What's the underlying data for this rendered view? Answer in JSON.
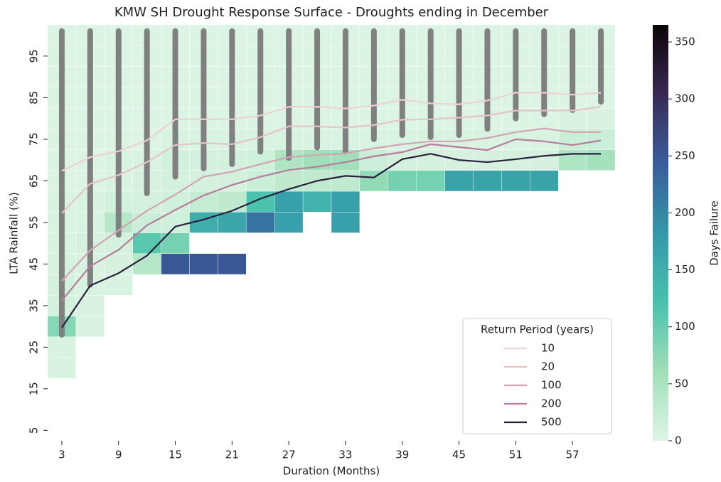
{
  "chart_data": {
    "type": "heatmap",
    "title": "KMW SH Drought Response Surface - Droughts ending in December",
    "xlabel": "Duration (Months)",
    "ylabel": "LTA Rainfall (%)",
    "xlim": [
      1.5,
      61.5
    ],
    "ylim": [
      2.5,
      102.5
    ],
    "xticks": [
      3,
      9,
      15,
      21,
      27,
      33,
      39,
      45,
      51,
      57
    ],
    "yticks": [
      5,
      15,
      25,
      35,
      45,
      55,
      65,
      75,
      85,
      95
    ],
    "x": [
      3,
      6,
      9,
      12,
      15,
      18,
      21,
      24,
      27,
      30,
      33,
      36,
      39,
      42,
      45,
      48,
      51,
      54,
      57,
      60
    ],
    "heatmap": {
      "y": [
        5,
        10,
        15,
        20,
        25,
        30,
        35,
        40,
        45,
        50,
        55,
        60,
        65,
        70,
        75,
        80,
        85,
        90,
        95,
        100
      ],
      "z": [
        [
          null,
          null,
          null,
          5,
          5,
          80,
          10,
          10,
          8,
          5,
          5,
          5,
          3,
          3,
          2,
          2,
          2,
          2,
          2,
          2
        ],
        [
          null,
          null,
          null,
          null,
          null,
          5,
          5,
          5,
          5,
          8,
          5,
          5,
          3,
          3,
          2,
          2,
          2,
          2,
          2,
          2
        ],
        [
          null,
          null,
          null,
          null,
          null,
          null,
          null,
          5,
          8,
          10,
          40,
          10,
          5,
          5,
          3,
          2,
          2,
          2,
          2,
          2
        ],
        [
          null,
          null,
          null,
          null,
          null,
          null,
          null,
          null,
          40,
          110,
          20,
          10,
          8,
          5,
          3,
          2,
          2,
          2,
          2,
          2
        ],
        [
          null,
          null,
          null,
          null,
          null,
          null,
          null,
          null,
          250,
          90,
          15,
          15,
          10,
          12,
          5,
          2,
          2,
          2,
          2,
          2
        ],
        [
          null,
          null,
          null,
          null,
          null,
          null,
          null,
          null,
          250,
          null,
          150,
          25,
          10,
          10,
          5,
          2,
          2,
          2,
          2,
          2
        ],
        [
          null,
          null,
          null,
          null,
          null,
          null,
          null,
          null,
          250,
          null,
          160,
          30,
          10,
          10,
          5,
          2,
          2,
          2,
          2,
          2
        ],
        [
          null,
          null,
          null,
          null,
          null,
          null,
          null,
          null,
          null,
          null,
          220,
          120,
          20,
          15,
          5,
          2,
          2,
          2,
          2,
          2
        ],
        [
          null,
          null,
          null,
          null,
          null,
          null,
          null,
          null,
          null,
          null,
          170,
          170,
          30,
          45,
          5,
          2,
          2,
          2,
          2,
          2
        ],
        [
          null,
          null,
          null,
          null,
          null,
          null,
          null,
          null,
          null,
          null,
          null,
          140,
          30,
          60,
          5,
          2,
          2,
          2,
          2,
          2
        ],
        [
          null,
          null,
          null,
          null,
          null,
          null,
          null,
          null,
          null,
          null,
          170,
          170,
          30,
          60,
          5,
          2,
          2,
          2,
          2,
          2
        ],
        [
          null,
          null,
          null,
          null,
          null,
          null,
          null,
          null,
          null,
          null,
          null,
          null,
          70,
          20,
          5,
          2,
          2,
          2,
          2,
          2
        ],
        [
          null,
          null,
          null,
          null,
          null,
          null,
          null,
          null,
          null,
          null,
          null,
          null,
          90,
          10,
          5,
          2,
          2,
          2,
          2,
          2
        ],
        [
          null,
          null,
          null,
          null,
          null,
          null,
          null,
          null,
          null,
          null,
          null,
          null,
          90,
          10,
          5,
          2,
          2,
          2,
          2,
          2
        ],
        [
          null,
          null,
          null,
          null,
          null,
          null,
          null,
          null,
          null,
          null,
          null,
          null,
          165,
          8,
          5,
          2,
          2,
          2,
          2,
          2
        ],
        [
          null,
          null,
          null,
          null,
          null,
          null,
          null,
          null,
          null,
          null,
          null,
          null,
          165,
          8,
          5,
          2,
          2,
          2,
          2,
          2
        ],
        [
          null,
          null,
          null,
          null,
          null,
          null,
          null,
          null,
          null,
          null,
          null,
          null,
          165,
          8,
          5,
          2,
          2,
          2,
          2,
          2
        ],
        [
          null,
          null,
          null,
          null,
          null,
          null,
          null,
          null,
          null,
          null,
          null,
          null,
          165,
          8,
          5,
          2,
          2,
          2,
          2,
          2
        ],
        [
          null,
          null,
          null,
          null,
          null,
          null,
          null,
          null,
          null,
          null,
          null,
          null,
          null,
          45,
          20,
          5,
          2,
          2,
          2,
          2
        ],
        [
          null,
          null,
          null,
          null,
          null,
          null,
          null,
          null,
          null,
          null,
          null,
          null,
          null,
          55,
          20,
          5,
          2,
          2,
          2,
          2
        ]
      ],
      "colormap": [
        "#def5e5",
        "#a0dfb9",
        "#49c1ad",
        "#3497a9",
        "#395d9c",
        "#382a54",
        "#0b0405"
      ],
      "clim": [
        0,
        365
      ],
      "colorbar_label": "Days Failure",
      "colorbar_ticks": [
        0,
        50,
        100,
        150,
        200,
        250,
        300,
        350
      ]
    },
    "scatter": {
      "color": "#808080",
      "ymin": [
        28,
        40,
        52,
        62,
        66,
        68,
        69,
        72,
        70.5,
        73,
        72,
        75,
        76,
        75.5,
        76,
        77.5,
        80,
        81,
        82,
        84
      ],
      "ymax": [
        101,
        101,
        101,
        101,
        101,
        101,
        101,
        101,
        101,
        101,
        101,
        101,
        101,
        101,
        101,
        101,
        101,
        101,
        101,
        101
      ]
    },
    "legend_title": "Return Period (years)",
    "legend": "lower right",
    "series": [
      {
        "name": "10",
        "color": "#eed2d2",
        "values": [
          67.4,
          70.7,
          72.1,
          74.7,
          79.8,
          79.8,
          79.8,
          80.7,
          82.8,
          82.8,
          82.4,
          83.1,
          84.5,
          83.6,
          83.4,
          84.3,
          86.2,
          86.2,
          85.7,
          86.2
        ]
      },
      {
        "name": "20",
        "color": "#e6c3c5",
        "values": [
          57.2,
          64.3,
          66.4,
          69.5,
          73.6,
          74.1,
          73.8,
          75.5,
          78.1,
          78.1,
          77.8,
          78.4,
          79.7,
          79.8,
          80.2,
          80.7,
          81.9,
          81.9,
          81.9,
          82.8
        ]
      },
      {
        "name": "100",
        "color": "#d3a3b5",
        "values": [
          40.9,
          48.3,
          53.1,
          57.8,
          61.7,
          66,
          67.2,
          69,
          70.7,
          71.2,
          71.6,
          72.8,
          73.8,
          74.5,
          74.5,
          75.3,
          76.7,
          77.6,
          76.7,
          76.7
        ]
      },
      {
        "name": "200",
        "color": "#b77c9c",
        "values": [
          36.2,
          44.5,
          48.4,
          54.3,
          58,
          61.5,
          64,
          66,
          67.6,
          68.4,
          69.5,
          70.9,
          71.9,
          73.8,
          73.1,
          72.4,
          75,
          74.5,
          73.6,
          74.7
        ]
      },
      {
        "name": "500",
        "color": "#2b1f3e",
        "values": [
          29.7,
          39.8,
          42.8,
          47,
          54,
          55.7,
          57.8,
          60.7,
          63,
          65,
          66.2,
          65.8,
          70.2,
          71.5,
          70,
          69.5,
          70.2,
          71,
          71.5,
          71.5
        ]
      }
    ]
  }
}
